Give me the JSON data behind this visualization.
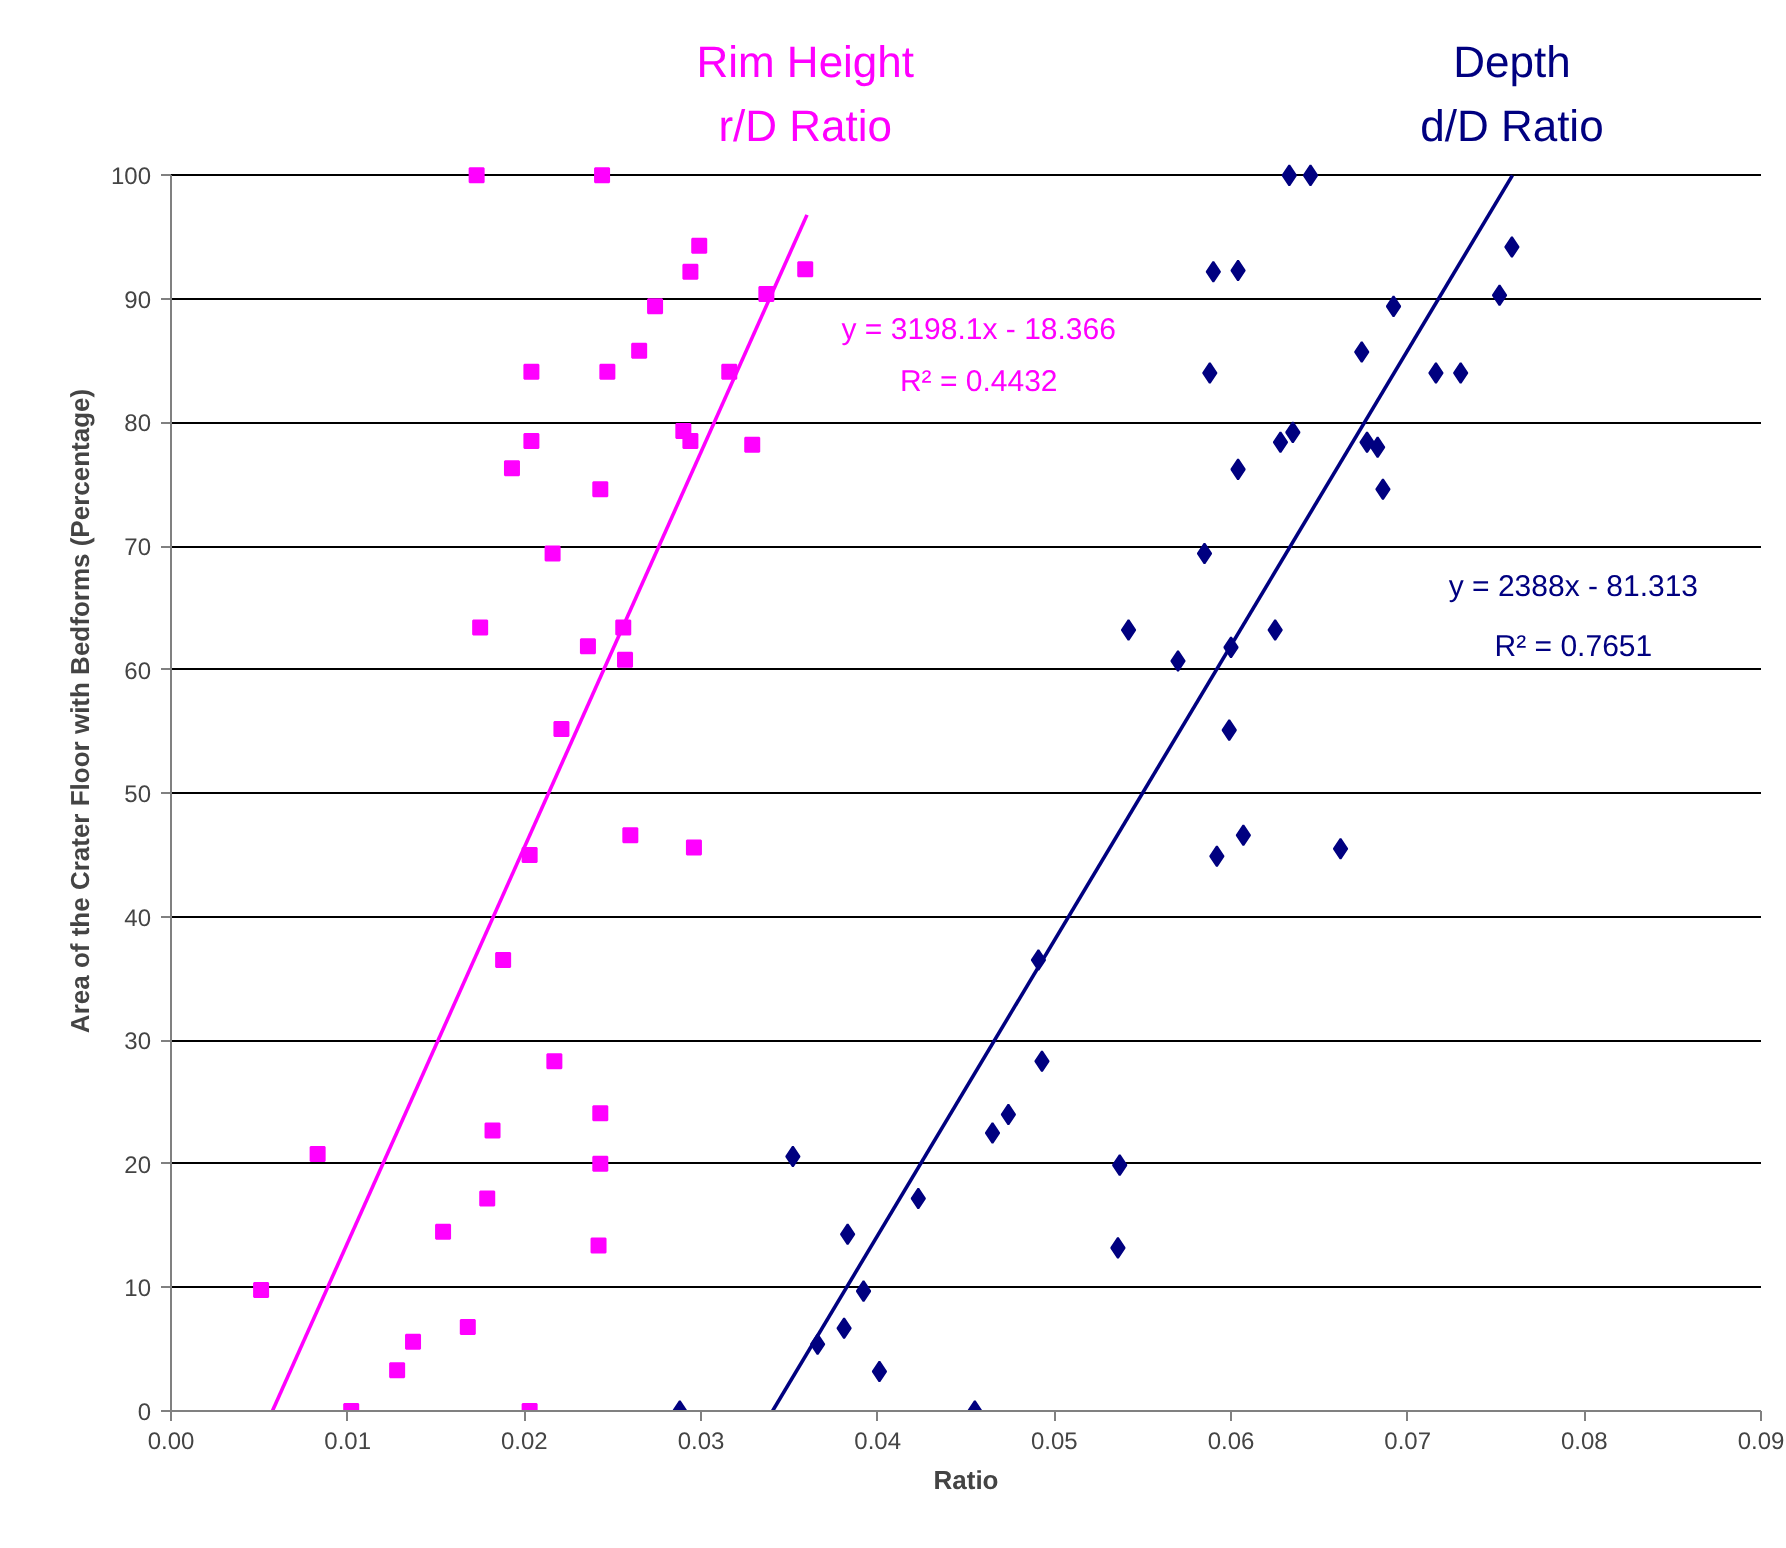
{
  "chart_data": {
    "type": "scatter",
    "xlabel": "Ratio",
    "ylabel": "Area of the Crater Floor with Bedforms (Percentage)",
    "xlim": [
      0,
      0.09
    ],
    "xticks": [
      {
        "value": 0,
        "label": "0.00"
      },
      {
        "value": 0.01,
        "label": "0.01"
      },
      {
        "value": 0.02,
        "label": "0.02"
      },
      {
        "value": 0.03,
        "label": "0.03"
      },
      {
        "value": 0.04,
        "label": "0.04"
      },
      {
        "value": 0.05,
        "label": "0.05"
      },
      {
        "value": 0.06,
        "label": "0.06"
      },
      {
        "value": 0.07,
        "label": "0.07"
      },
      {
        "value": 0.08,
        "label": "0.08"
      },
      {
        "value": 0.09,
        "label": "0.09"
      }
    ],
    "ylim": [
      0,
      100
    ],
    "yticks": [
      0,
      10,
      20,
      30,
      40,
      50,
      60,
      70,
      80,
      90,
      100
    ],
    "grid": "y",
    "series": [
      {
        "name": "Rim Height\nr/D Ratio",
        "color": "#ff00ff",
        "marker": "square",
        "x": [
          0.0173,
          0.0244,
          0.0299,
          0.0294,
          0.0359,
          0.0337,
          0.0274,
          0.0265,
          0.0204,
          0.0247,
          0.0316,
          0.029,
          0.0294,
          0.0329,
          0.0204,
          0.0193,
          0.0243,
          0.0216,
          0.0175,
          0.0256,
          0.0236,
          0.0257,
          0.0221,
          0.0203,
          0.026,
          0.0296,
          0.0188,
          0.0217,
          0.0243,
          0.0182,
          0.0243,
          0.0083,
          0.0179,
          0.0154,
          0.0242,
          0.0051,
          0.0168,
          0.0137,
          0.0128,
          0.0102,
          0.0203
        ],
        "values": [
          100,
          100,
          94.3,
          92.2,
          92.4,
          90.4,
          89.4,
          85.8,
          84.1,
          84.1,
          84.1,
          79.3,
          78.5,
          78.2,
          78.5,
          76.3,
          74.6,
          69.4,
          63.4,
          63.4,
          61.9,
          60.8,
          55.2,
          45.0,
          46.6,
          45.6,
          36.5,
          28.3,
          24.1,
          22.7,
          20.0,
          20.8,
          17.2,
          14.5,
          13.4,
          9.8,
          6.8,
          5.6,
          3.3,
          0,
          0
        ]
      },
      {
        "name": "Depth\nd/D Ratio",
        "color": "#000080",
        "marker": "diamond",
        "x": [
          0.0633,
          0.0645,
          0.0759,
          0.059,
          0.0604,
          0.0752,
          0.0692,
          0.0674,
          0.0588,
          0.0716,
          0.073,
          0.0635,
          0.0628,
          0.0677,
          0.0683,
          0.0604,
          0.0686,
          0.0585,
          0.0542,
          0.0625,
          0.057,
          0.06,
          0.0599,
          0.0592,
          0.0607,
          0.0662,
          0.0491,
          0.0493,
          0.0474,
          0.0465,
          0.0537,
          0.0352,
          0.0423,
          0.0383,
          0.0536,
          0.0392,
          0.0381,
          0.0366,
          0.0401,
          0.0288,
          0.0455
        ],
        "values": [
          100,
          100,
          94.2,
          92.2,
          92.3,
          90.3,
          89.4,
          85.7,
          84.0,
          84.0,
          84.0,
          79.2,
          78.4,
          78.4,
          78.0,
          76.2,
          74.6,
          69.4,
          63.2,
          63.2,
          60.7,
          61.8,
          55.1,
          44.9,
          46.6,
          45.5,
          36.5,
          28.3,
          24.0,
          22.5,
          19.9,
          20.6,
          17.2,
          14.3,
          13.2,
          9.7,
          6.7,
          5.4,
          3.2,
          0,
          0
        ]
      },
      {
        "type": "line",
        "color": "#ff00ff",
        "x": [
          0.00574,
          0.036
        ],
        "values": [
          0,
          96.8
        ]
      },
      {
        "type": "line",
        "color": "#000080",
        "x": [
          0.03405,
          0.07593
        ],
        "values": [
          0,
          100
        ]
      }
    ],
    "annotations": [
      "y = 3198.1x - 18.366",
      "R² = 0.4432",
      "y = 2388x - 81.313",
      "R² = 0.7651"
    ]
  }
}
